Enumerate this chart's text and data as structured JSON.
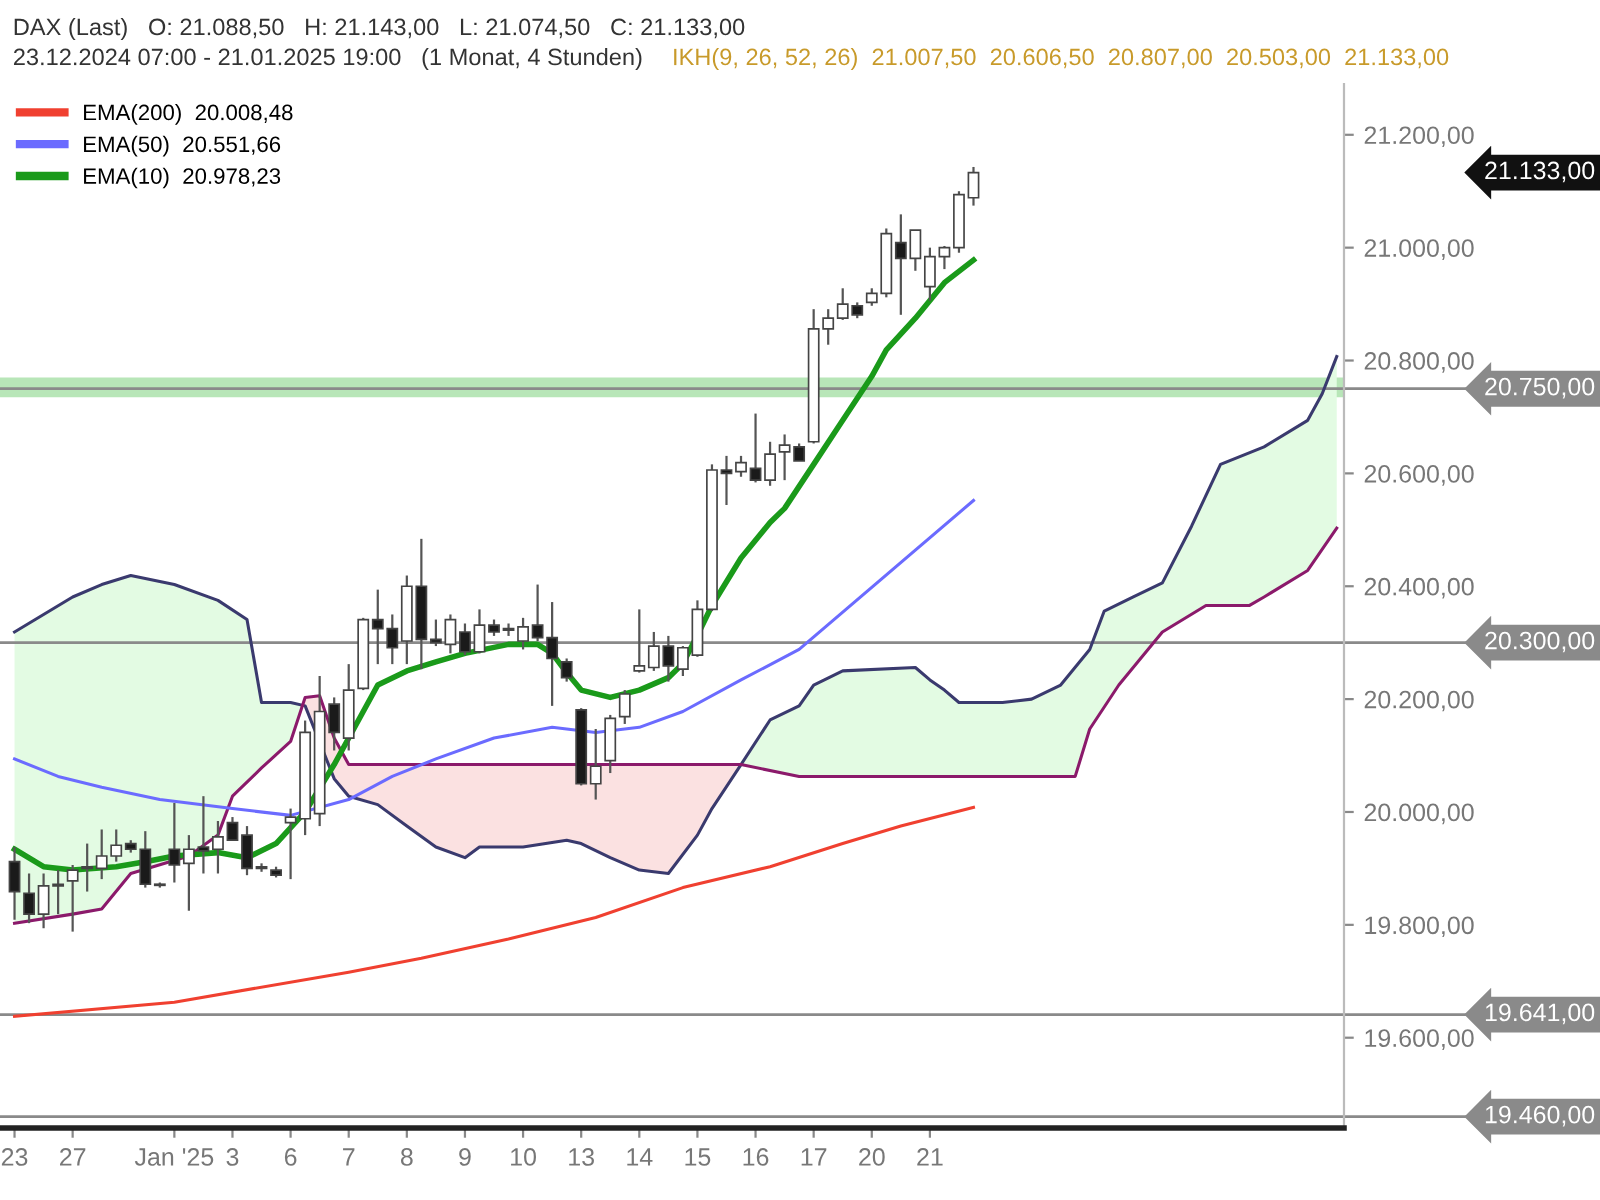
{
  "chart_data": {
    "type": "candlestick",
    "title": "DAX (Last)   O: 21.088,50   H: 21.143,00   L: 21.074,50   C: 21.133,00",
    "subtitle": "23.12.2024 07:00 - 21.01.2025 19:00   (1 Monat, 4 Stunden)",
    "annotations": [
      "IKH(9, 26, 52, 26)  21.007,50  20.606,50  20.807,00  20.503,00  21.133,00",
      "21.133,00"
    ],
    "categories": [
      "23",
      null,
      null,
      null,
      "27",
      null,
      null,
      null,
      null,
      null,
      null,
      "Jan '25",
      null,
      null,
      null,
      "3",
      null,
      null,
      null,
      "6",
      null,
      null,
      null,
      "7",
      null,
      null,
      null,
      "8",
      null,
      null,
      null,
      "9",
      null,
      null,
      null,
      "10",
      null,
      null,
      null,
      "13",
      null,
      null,
      null,
      "14",
      null,
      null,
      null,
      "15",
      null,
      null,
      null,
      "16",
      null,
      null,
      null,
      "17",
      null,
      null,
      null,
      "20",
      null,
      null,
      null,
      "21",
      null,
      null,
      null,
      null,
      null,
      null,
      null,
      null,
      null,
      null,
      null,
      null,
      null,
      null,
      null,
      null,
      null,
      null,
      null,
      null,
      null,
      null,
      null,
      null,
      null,
      null,
      null,
      null
    ],
    "ohlc": [
      [
        19912,
        19938,
        19809,
        19859
      ],
      [
        19856,
        19891,
        19803,
        19819
      ],
      [
        19819,
        19891,
        19794,
        19869
      ],
      [
        19869,
        19897,
        19819,
        19872
      ],
      [
        19878,
        19906,
        19788,
        19897
      ],
      [
        19900,
        19944,
        19859,
        19903
      ],
      [
        19900,
        19969,
        19881,
        19922
      ],
      [
        19922,
        19969,
        19912,
        19941
      ],
      [
        19944,
        19950,
        19928,
        19934
      ],
      [
        19934,
        19966,
        19866,
        19872
      ],
      [
        19870,
        19875,
        19866,
        19872
      ],
      [
        19934,
        20016,
        19875,
        19906
      ],
      [
        19909,
        19959,
        19825,
        19934
      ],
      [
        19938,
        20028,
        19891,
        19931
      ],
      [
        19934,
        19984,
        19891,
        19956
      ],
      [
        19981,
        19991,
        19950,
        19950
      ],
      [
        19959,
        19975,
        19888,
        19900
      ],
      [
        19903,
        19909,
        19894,
        19900
      ],
      [
        19897,
        19903,
        19884,
        19888
      ],
      [
        19981,
        20006,
        19881,
        19991
      ],
      [
        19988,
        20162,
        19959,
        20141
      ],
      [
        19997,
        20241,
        19975,
        20178
      ],
      [
        20191,
        20203,
        20109,
        20141
      ],
      [
        20131,
        20262,
        20109,
        20216
      ],
      [
        20219,
        20344,
        20216,
        20341
      ],
      [
        20341,
        20394,
        20262,
        20325
      ],
      [
        20325,
        20350,
        20262,
        20291
      ],
      [
        20303,
        20419,
        20262,
        20400
      ],
      [
        20400,
        20484,
        20253,
        20306
      ],
      [
        20306,
        20341,
        20294,
        20300
      ],
      [
        20297,
        20350,
        20281,
        20341
      ],
      [
        20319,
        20334,
        20278,
        20284
      ],
      [
        20284,
        20359,
        20281,
        20331
      ],
      [
        20331,
        20341,
        20312,
        20319
      ],
      [
        20322,
        20334,
        20312,
        20325
      ],
      [
        20303,
        20344,
        20288,
        20328
      ],
      [
        20331,
        20403,
        20303,
        20309
      ],
      [
        20309,
        20372,
        20188,
        20272
      ],
      [
        20266,
        20272,
        20231,
        20238
      ],
      [
        20181,
        20184,
        20047,
        20050
      ],
      [
        20050,
        20147,
        20022,
        20081
      ],
      [
        20091,
        20172,
        20069,
        20166
      ],
      [
        20169,
        20216,
        20156,
        20209
      ],
      [
        20250,
        20359,
        20247,
        20259
      ],
      [
        20256,
        20319,
        20250,
        20294
      ],
      [
        20294,
        20312,
        20231,
        20259
      ],
      [
        20253,
        20294,
        20241,
        20291
      ],
      [
        20278,
        20375,
        20275,
        20359
      ],
      [
        20359,
        20616,
        20356,
        20606
      ],
      [
        20606,
        20631,
        20544,
        20600
      ],
      [
        20603,
        20631,
        20594,
        20619
      ],
      [
        20609,
        20706,
        20584,
        20588
      ],
      [
        20588,
        20656,
        20578,
        20634
      ],
      [
        20638,
        20669,
        20588,
        20650
      ],
      [
        20647,
        20653,
        20622,
        20622
      ],
      [
        20656,
        20891,
        20653,
        20856
      ],
      [
        20856,
        20891,
        20828,
        20875
      ],
      [
        20875,
        20928,
        20872,
        20900
      ],
      [
        20897,
        20903,
        20875,
        20881
      ],
      [
        20903,
        20928,
        20897,
        20919
      ],
      [
        20919,
        21034,
        20912,
        21025
      ],
      [
        21009,
        21059,
        20881,
        20981
      ],
      [
        20981,
        21031,
        20959,
        21031
      ],
      [
        20931,
        21000,
        20906,
        20984
      ],
      [
        20984,
        21003,
        20962,
        21000
      ],
      [
        21000,
        21100,
        20991,
        21094
      ],
      [
        21088.5,
        21143,
        21074.5,
        21133
      ],
      null,
      null,
      null,
      null,
      null,
      null,
      null,
      null,
      null,
      null,
      null,
      null,
      null,
      null,
      null,
      null,
      null,
      null,
      null,
      null,
      null,
      null,
      null,
      null,
      null
    ],
    "series": [
      {
        "type": "line",
        "color": "#3a3a6e",
        "values": [
          20319,
          null,
          20350,
          null,
          20381,
          null,
          20403,
          null,
          20419,
          null,
          null,
          20403,
          null,
          null,
          20375,
          null,
          20341,
          20194,
          null,
          20194,
          20188,
          null,
          20059,
          20028,
          null,
          20013,
          null,
          19975,
          null,
          19938,
          null,
          19919,
          19938,
          null,
          null,
          19938,
          null,
          null,
          19950,
          19944,
          null,
          19919,
          null,
          19897,
          null,
          19891,
          null,
          19959,
          20006,
          null,
          20084,
          null,
          20163,
          null,
          20188,
          20225,
          null,
          20250,
          null,
          null,
          null,
          null,
          20256,
          20234,
          20216,
          20194,
          null,
          null,
          20194,
          null,
          20200,
          null,
          20225,
          null,
          20288,
          20356,
          null,
          20381,
          null,
          20406,
          null,
          20506,
          null,
          20616,
          null,
          null,
          20647,
          null,
          null,
          20694,
          20741,
          20807
        ]
      },
      {
        "type": "line",
        "color": "#8b1a6b",
        "values": [
          19803,
          null,
          null,
          null,
          19819,
          null,
          19828,
          null,
          19891,
          null,
          null,
          null,
          19922,
          null,
          19959,
          20028,
          null,
          20078,
          null,
          20125,
          20203,
          20206,
          20131,
          20084,
          null,
          null,
          null,
          null,
          null,
          null,
          null,
          null,
          null,
          null,
          null,
          null,
          null,
          null,
          null,
          null,
          null,
          null,
          null,
          null,
          null,
          null,
          null,
          null,
          null,
          null,
          20084,
          null,
          null,
          null,
          20063,
          null,
          null,
          null,
          null,
          null,
          null,
          null,
          null,
          null,
          null,
          null,
          null,
          null,
          null,
          null,
          null,
          null,
          null,
          20063,
          20147,
          null,
          20225,
          null,
          null,
          20319,
          null,
          null,
          20366,
          null,
          null,
          20366,
          20381,
          null,
          null,
          20428,
          null,
          20503
        ]
      },
      {
        "type": "line",
        "name": "EMA(200)  20.008,48",
        "color": "#f04030",
        "values": [
          19638,
          null,
          null,
          null,
          null,
          null,
          null,
          null,
          null,
          null,
          null,
          19663,
          null,
          null,
          null,
          null,
          null,
          null,
          null,
          null,
          null,
          null,
          null,
          19716,
          null,
          null,
          null,
          null,
          19741,
          null,
          null,
          null,
          null,
          null,
          19775,
          null,
          null,
          null,
          null,
          null,
          19813,
          null,
          null,
          null,
          null,
          null,
          19866,
          null,
          null,
          null,
          null,
          null,
          19903,
          null,
          null,
          null,
          null,
          19944,
          null,
          null,
          null,
          19975,
          null,
          null,
          null,
          null,
          20008,
          null,
          null,
          null,
          null,
          null,
          null,
          null,
          null,
          null,
          null,
          null,
          null,
          null,
          null,
          null,
          null,
          null,
          null,
          null,
          null,
          null,
          null,
          null,
          null,
          null
        ]
      },
      {
        "type": "line",
        "name": "EMA(50)  20.551,66",
        "color": "#6b6bff",
        "values": [
          20094,
          null,
          null,
          20063,
          null,
          null,
          20044,
          null,
          null,
          null,
          20022,
          null,
          null,
          null,
          null,
          20006,
          null,
          null,
          null,
          19994,
          null,
          null,
          null,
          20022,
          null,
          null,
          20063,
          null,
          null,
          20094,
          null,
          null,
          null,
          20131,
          null,
          null,
          null,
          20150,
          null,
          null,
          20141,
          null,
          null,
          20150,
          null,
          null,
          20178,
          null,
          null,
          null,
          20234,
          null,
          null,
          null,
          20288,
          null,
          null,
          null,
          null,
          null,
          null,
          null,
          null,
          null,
          null,
          null,
          20552,
          null,
          null,
          null,
          null,
          null,
          null,
          null,
          null,
          null,
          null,
          null,
          null,
          null,
          null,
          null,
          null,
          null,
          null,
          null,
          null,
          null,
          null,
          null,
          null,
          null
        ]
      },
      {
        "type": "line",
        "name": "EMA(10)  20.978,23",
        "color": "#1a9a1a",
        "values": [
          19934,
          null,
          19903,
          null,
          19897,
          null,
          null,
          19903,
          null,
          19912,
          null,
          19922,
          null,
          null,
          19928,
          null,
          19919,
          null,
          19944,
          null,
          20000,
          null,
          20084,
          null,
          20178,
          20225,
          null,
          20250,
          null,
          20266,
          null,
          20281,
          null,
          null,
          20297,
          null,
          20297,
          20281,
          20247,
          20216,
          null,
          20203,
          null,
          20216,
          null,
          20238,
          20263,
          20313,
          20366,
          null,
          20450,
          null,
          20513,
          20538,
          null,
          20616,
          null,
          20694,
          null,
          20772,
          20819,
          null,
          20875,
          null,
          20938,
          null,
          20978,
          null,
          null,
          null,
          null,
          null,
          null,
          null,
          null,
          null,
          null,
          null,
          null,
          null,
          null,
          null,
          null,
          null,
          null,
          null,
          null,
          null,
          null,
          null,
          null,
          null
        ]
      }
    ],
    "ref_lines": [
      {
        "axis": "y",
        "value": 20750,
        "label": "20.750,00",
        "color": "#8a8a8a"
      },
      {
        "axis": "y",
        "value": 20300,
        "label": "20.300,00",
        "color": "#8a8a8a"
      },
      {
        "axis": "y",
        "value": 19641,
        "label": "19.641,00",
        "color": "#8a8a8a"
      },
      {
        "axis": "y",
        "value": 19460,
        "label": "19.460,00",
        "color": "#8a8a8a"
      }
    ],
    "bands": [
      {
        "axis": "y",
        "from": 20735,
        "to": 20770,
        "color": "#b8e6b8"
      }
    ],
    "ylim": [
      19440,
      21290
    ],
    "yticks": [
      {
        "value": 19600,
        "label": "19.600,00"
      },
      {
        "value": 19800,
        "label": "19.800,00"
      },
      {
        "value": 20000,
        "label": "20.000,00"
      },
      {
        "value": 20200,
        "label": "20.200,00"
      },
      {
        "value": 20400,
        "label": "20.400,00"
      },
      {
        "value": 20600,
        "label": "20.600,00"
      },
      {
        "value": 20800,
        "label": "20.800,00"
      },
      {
        "value": 21000,
        "label": "21.000,00"
      },
      {
        "value": 21200,
        "label": "21.200,00"
      }
    ],
    "legend": "top left"
  }
}
